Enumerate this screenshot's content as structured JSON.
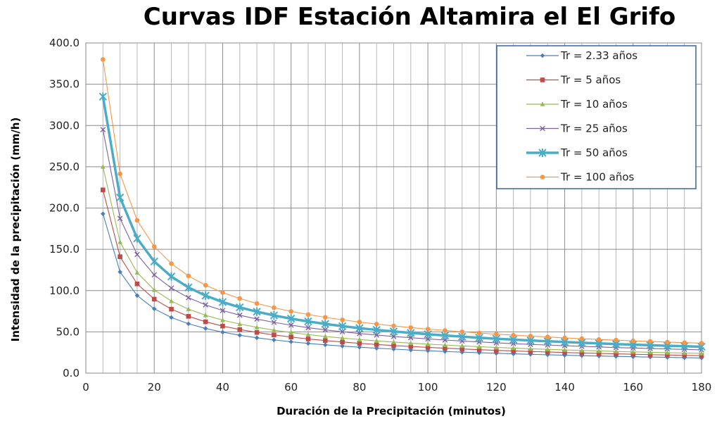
{
  "chart_data": {
    "type": "line",
    "title": "Curvas IDF Estación Altamira el El Grifo",
    "xlabel": "Duración de la Precipitación (minutos)",
    "ylabel": "Intensidad de la precipitación (mm/h)",
    "xlim": [
      0,
      180
    ],
    "ylim": [
      0,
      400
    ],
    "x_ticks": [
      "0",
      "20",
      "40",
      "60",
      "80",
      "100",
      "120",
      "140",
      "160",
      "180"
    ],
    "y_ticks": [
      "0.0",
      "50.0",
      "100.0",
      "150.0",
      "200.0",
      "250.0",
      "300.0",
      "350.0",
      "400.0"
    ],
    "grid": "vertical every 5 minutes, horizontal every 50 mm/h",
    "legend_position": "top-right",
    "x": [
      5,
      10,
      15,
      20,
      25,
      30,
      35,
      40,
      45,
      50,
      55,
      60,
      65,
      70,
      75,
      80,
      85,
      90,
      95,
      100,
      105,
      110,
      115,
      120,
      125,
      130,
      135,
      140,
      145,
      150,
      155,
      160,
      165,
      170,
      175,
      180
    ],
    "series": [
      {
        "name": "Tr = 2.33 años",
        "color": "#4a7ebb",
        "marker": "diamond",
        "values": [
          193.0,
          122.6,
          94.0,
          77.9,
          67.4,
          59.8,
          54.1,
          49.6,
          45.9,
          42.8,
          40.2,
          38.0,
          36.0,
          34.3,
          32.8,
          31.4,
          30.2,
          29.1,
          28.0,
          27.1,
          26.2,
          25.4,
          24.7,
          24.0,
          23.4,
          22.8,
          22.2,
          21.7,
          21.2,
          20.7,
          20.3,
          19.9,
          19.5,
          19.1,
          18.7,
          18.4
        ]
      },
      {
        "name": "Tr = 5 años",
        "color": "#be4b48",
        "marker": "square",
        "values": [
          222.0,
          141.0,
          108.1,
          89.6,
          77.5,
          68.8,
          62.2,
          57.0,
          52.8,
          49.3,
          46.3,
          43.7,
          41.4,
          39.5,
          37.7,
          36.1,
          34.7,
          33.4,
          32.3,
          31.2,
          30.2,
          29.3,
          28.4,
          27.6,
          26.9,
          26.2,
          25.6,
          25.0,
          24.4,
          23.9,
          23.4,
          22.9,
          22.4,
          22.0,
          21.6,
          21.2
        ]
      },
      {
        "name": "Tr = 10 años",
        "color": "#98b954",
        "marker": "triangle",
        "values": [
          250.0,
          158.8,
          121.8,
          100.9,
          87.3,
          77.5,
          70.1,
          64.2,
          59.5,
          55.5,
          52.1,
          49.2,
          46.7,
          44.4,
          42.5,
          40.7,
          39.1,
          37.7,
          36.3,
          35.1,
          34.0,
          33.0,
          32.0,
          31.1,
          30.3,
          29.5,
          28.8,
          28.1,
          27.5,
          26.9,
          26.3,
          25.8,
          25.3,
          24.8,
          24.3,
          23.9
        ]
      },
      {
        "name": "Tr = 25 años",
        "color": "#7d60a0",
        "marker": "x",
        "values": [
          295.0,
          187.4,
          143.7,
          119.0,
          103.0,
          91.4,
          82.7,
          75.8,
          70.2,
          65.5,
          61.5,
          58.1,
          55.1,
          52.4,
          50.1,
          48.0,
          46.1,
          44.4,
          42.9,
          41.4,
          40.1,
          38.9,
          37.8,
          36.7,
          35.7,
          34.8,
          34.0,
          33.2,
          32.4,
          31.7,
          31.0,
          30.4,
          29.8,
          29.2,
          28.7,
          28.2
        ]
      },
      {
        "name": "Tr = 50 años",
        "color": "#4bacc6",
        "marker": "star",
        "values": [
          335.0,
          212.8,
          163.2,
          135.2,
          117.0,
          103.8,
          93.9,
          86.1,
          79.7,
          74.4,
          69.9,
          66.0,
          62.6,
          59.6,
          56.9,
          54.5,
          52.4,
          50.5,
          48.7,
          47.1,
          45.6,
          44.2,
          42.9,
          41.7,
          40.6,
          39.6,
          38.6,
          37.7,
          36.8,
          36.0,
          35.2,
          34.5,
          33.8,
          33.2,
          32.6,
          32.0
        ]
      },
      {
        "name": "Tr = 100 años",
        "color": "#f79646",
        "marker": "circle",
        "values": [
          380.0,
          241.4,
          185.1,
          153.3,
          132.7,
          117.8,
          106.5,
          97.6,
          90.4,
          84.4,
          79.3,
          74.8,
          71.0,
          67.6,
          64.6,
          61.9,
          59.4,
          57.2,
          55.2,
          53.4,
          51.7,
          50.1,
          48.6,
          47.3,
          46.0,
          44.9,
          43.8,
          42.7,
          41.8,
          40.8,
          40.0,
          39.1,
          38.4,
          37.6,
          36.9,
          36.3
        ]
      }
    ]
  }
}
